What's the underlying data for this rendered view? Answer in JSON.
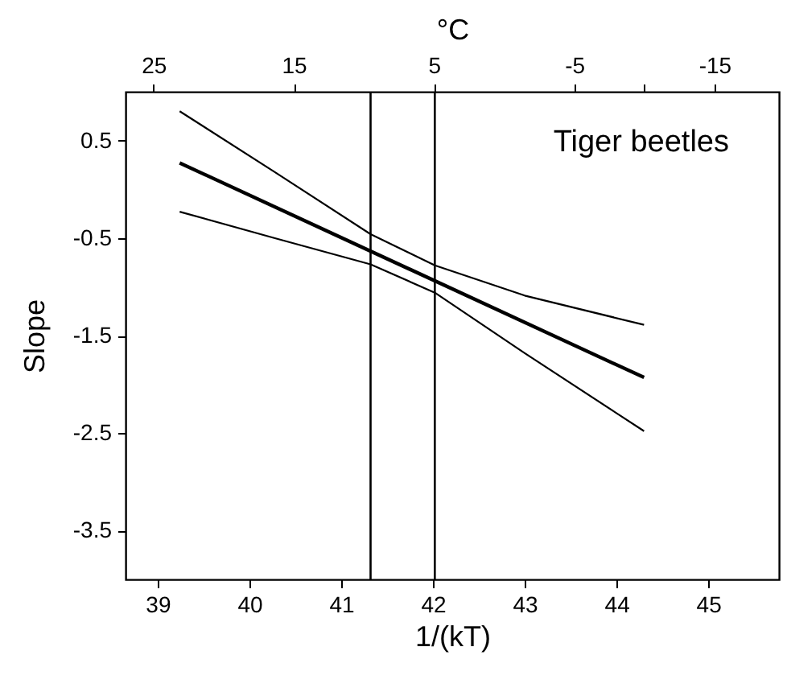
{
  "chart_data": {
    "type": "line",
    "xlabel": "1/(kT)",
    "ylabel": "Slope",
    "x2label": "°C",
    "annotations": [
      "Tiger beetles"
    ],
    "xlim": [
      38.65,
      45.77
    ],
    "xticks": [
      39,
      40,
      41,
      42,
      43,
      44,
      45
    ],
    "x2lim": [
      27,
      -19.6
    ],
    "x2ticks": [
      25,
      15,
      5,
      -5,
      {
        "value": -10,
        "label": null
      },
      -15
    ],
    "ylim": [
      -4,
      1
    ],
    "yticks": [
      0.5,
      -0.5,
      -1.5,
      -2.5,
      -3.5
    ],
    "grid": false,
    "marker": "none",
    "line_style": "solid",
    "ref_lines": [
      {
        "axis": "x",
        "value": 41.32
      },
      {
        "axis": "x",
        "value": 42.02
      }
    ],
    "series": [
      {
        "color": "#000000",
        "x": [
          39.24,
          44.3
        ],
        "values": [
          0.27,
          -1.93
        ]
      },
      {
        "color": "#000000",
        "x": [
          39.24,
          40.27,
          41.32,
          42.02,
          43,
          44.3
        ],
        "values": [
          0.8,
          0.18,
          -0.46,
          -0.78,
          -1.09,
          -1.39
        ]
      },
      {
        "color": "#000000",
        "x": [
          39.24,
          40.27,
          41.32,
          42.02,
          43,
          44.3
        ],
        "values": [
          -0.23,
          -0.5,
          -0.77,
          -1.06,
          -1.68,
          -2.48
        ]
      }
    ]
  }
}
